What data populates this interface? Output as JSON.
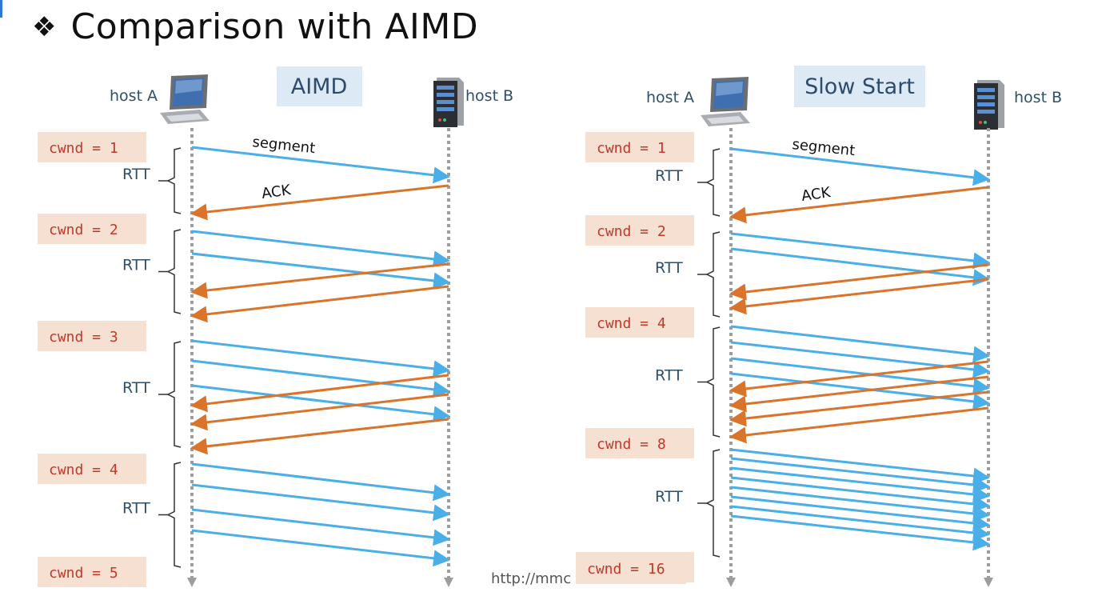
{
  "title": "Comparison with AIMD",
  "bullet_icon": "four-diamond-bullet-icon",
  "colors": {
    "segment": "#4aaee8",
    "ack": "#d9742a",
    "cwnd_box": "#f6e0d2",
    "cwnd_text": "#c0392b",
    "header_box": "#dde9f4",
    "header_text": "#2d4b6b",
    "label_text": "#2f4e6a",
    "timeline": "#9d9d9d"
  },
  "url_text": "http://mmc",
  "panels": [
    {
      "id": "aimd",
      "header": "AIMD",
      "host_a": "host A",
      "host_b": "host B",
      "segment_label": "segment",
      "ack_label": "ACK",
      "rtt_label": "RTT",
      "cwnd": [
        "cwnd = 1",
        "cwnd = 2",
        "cwnd = 3",
        "cwnd = 4",
        "cwnd = 5"
      ],
      "rounds": [
        {
          "segments": 1,
          "acks": 1
        },
        {
          "segments": 2,
          "acks": 2
        },
        {
          "segments": 3,
          "acks": 3
        },
        {
          "segments": 4,
          "acks": 0
        }
      ]
    },
    {
      "id": "slow-start",
      "header": "Slow Start",
      "host_a": "host A",
      "host_b": "host B",
      "segment_label": "segment",
      "ack_label": "ACK",
      "rtt_label": "RTT",
      "cwnd": [
        "cwnd = 1",
        "cwnd = 2",
        "cwnd = 4",
        "cwnd = 8",
        "cwnd = 16"
      ],
      "rounds": [
        {
          "segments": 1,
          "acks": 1
        },
        {
          "segments": 2,
          "acks": 2
        },
        {
          "segments": 4,
          "acks": 4
        },
        {
          "segments": 8,
          "acks": 0
        }
      ]
    }
  ]
}
